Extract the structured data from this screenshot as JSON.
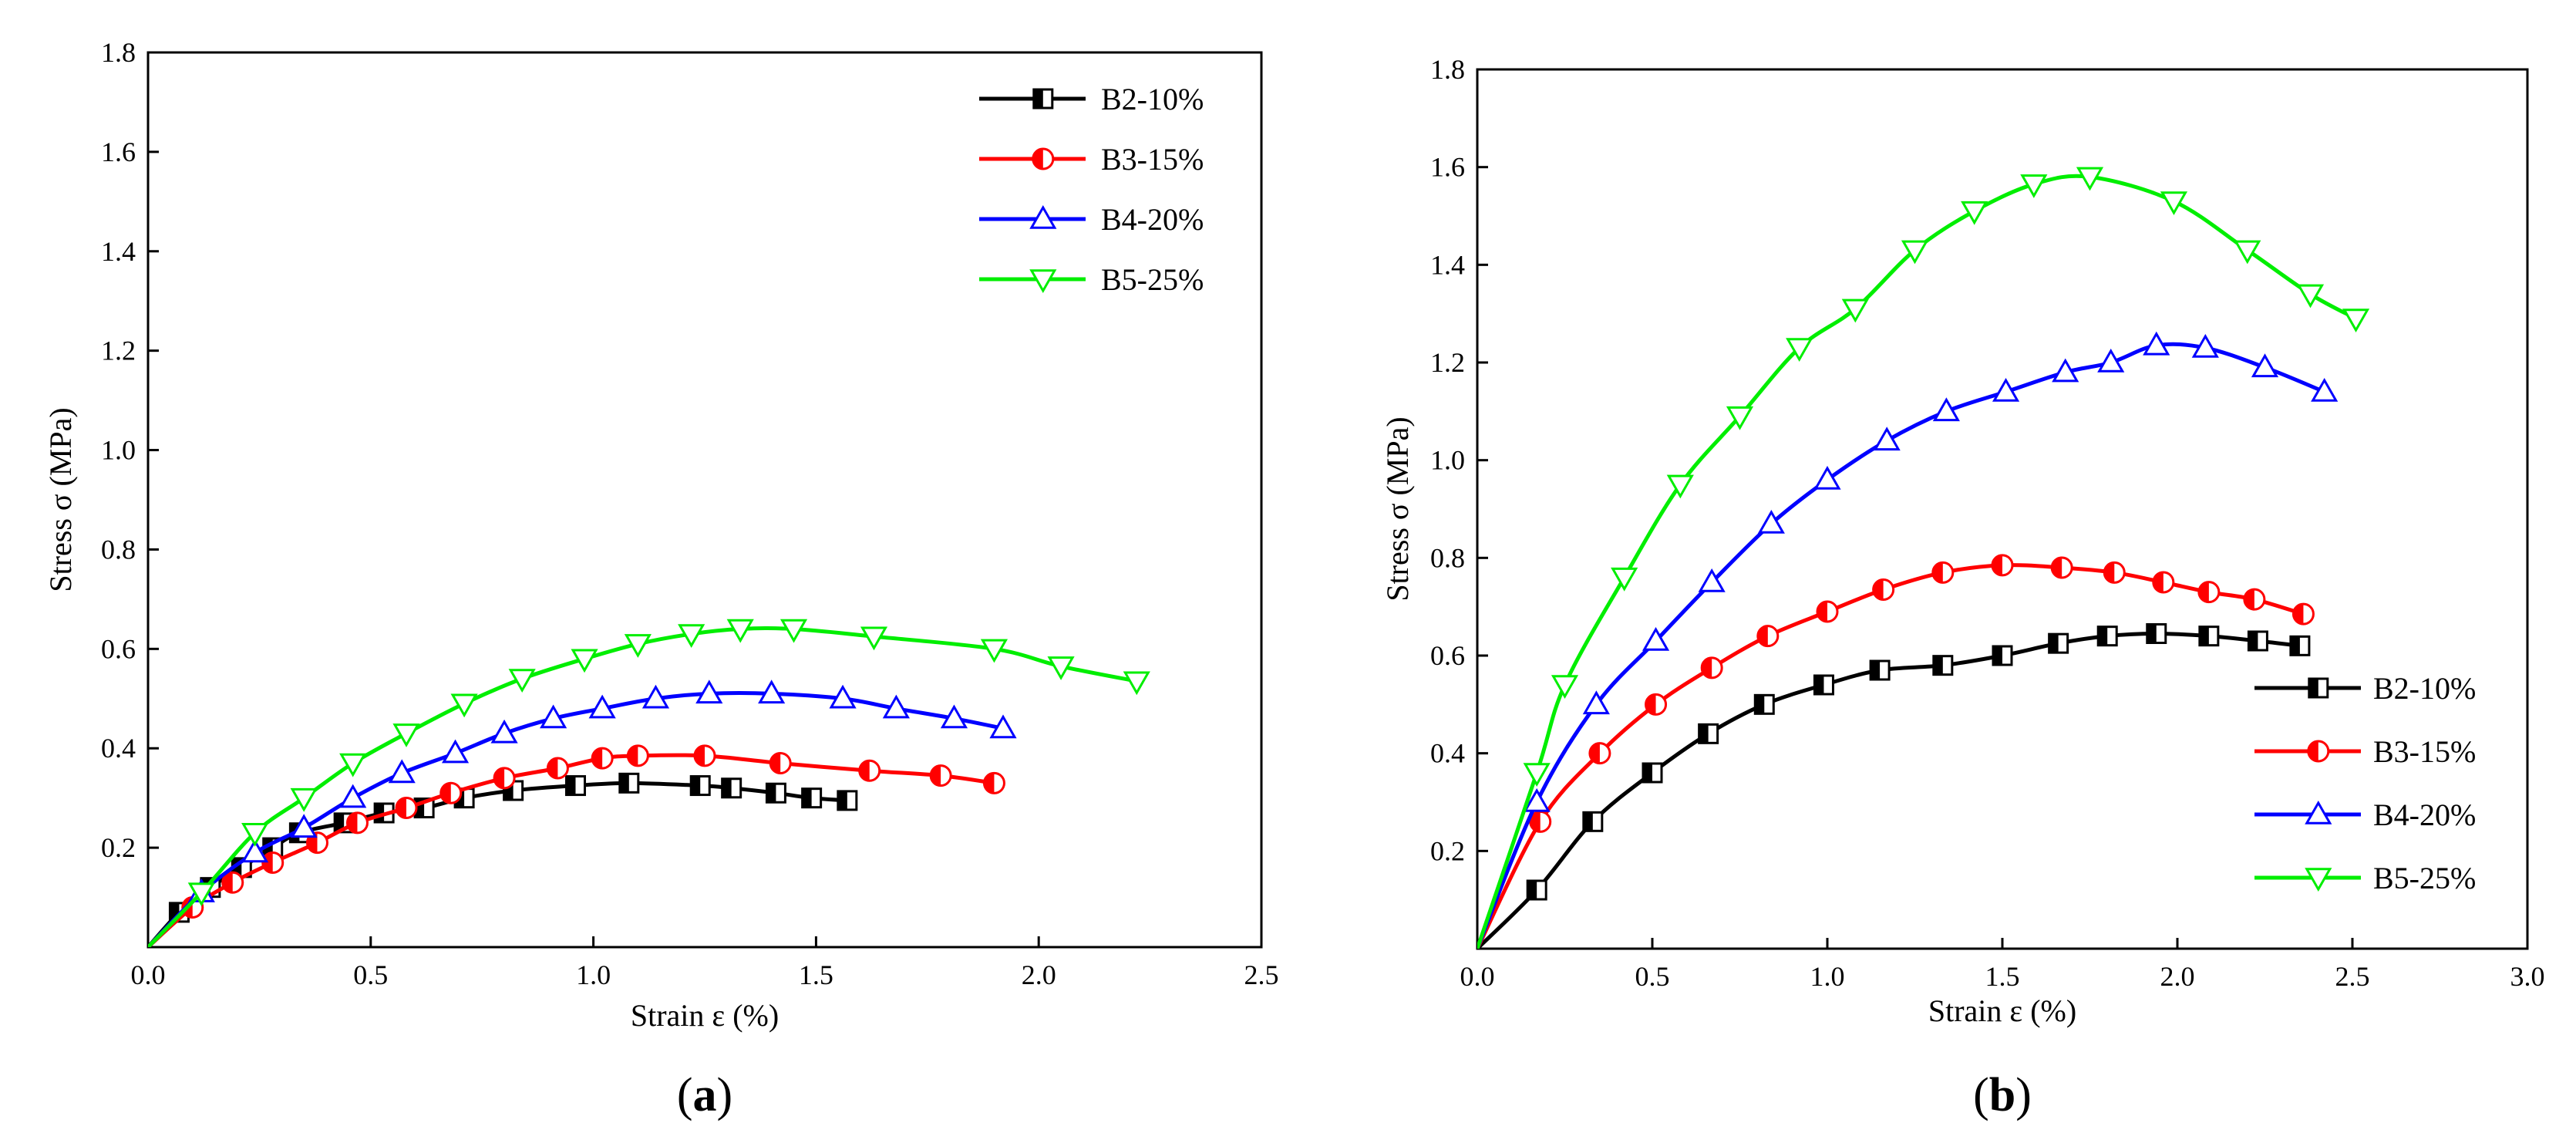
{
  "chart_data": [
    {
      "type": "line",
      "panel_label": "a",
      "title": "",
      "xlabel": "Strain ε (%)",
      "ylabel": "Stress σ (MPa)",
      "xlim": [
        0,
        2.5
      ],
      "ylim": [
        0,
        1.8
      ],
      "xticks": [
        "0.0",
        "0.5",
        "1.0",
        "1.5",
        "2.0",
        "2.5"
      ],
      "yticks": [
        "0.2",
        "0.4",
        "0.6",
        "0.8",
        "1.0",
        "1.2",
        "1.4",
        "1.6",
        "1.8"
      ],
      "legend_position": "top-right",
      "series": [
        {
          "name": "B2-10%",
          "color": "#000000",
          "marker": "half-square",
          "x": [
            0,
            0.07,
            0.14,
            0.21,
            0.28,
            0.34,
            0.44,
            0.53,
            0.62,
            0.71,
            0.82,
            0.96,
            1.08,
            1.24,
            1.31,
            1.41,
            1.49,
            1.57
          ],
          "y": [
            0,
            0.07,
            0.12,
            0.16,
            0.2,
            0.23,
            0.25,
            0.27,
            0.28,
            0.3,
            0.315,
            0.325,
            0.33,
            0.325,
            0.32,
            0.31,
            0.3,
            0.295
          ]
        },
        {
          "name": "B3-15%",
          "color": "#ff0000",
          "marker": "half-circle",
          "x": [
            0,
            0.1,
            0.19,
            0.28,
            0.38,
            0.47,
            0.58,
            0.68,
            0.8,
            0.92,
            1.02,
            1.1,
            1.25,
            1.42,
            1.62,
            1.78,
            1.9
          ],
          "y": [
            0,
            0.08,
            0.13,
            0.17,
            0.21,
            0.25,
            0.28,
            0.31,
            0.34,
            0.36,
            0.38,
            0.385,
            0.385,
            0.37,
            0.355,
            0.345,
            0.33
          ]
        },
        {
          "name": "B4-20%",
          "color": "#0000ff",
          "marker": "triangle-up",
          "x": [
            0,
            0.12,
            0.24,
            0.35,
            0.46,
            0.57,
            0.69,
            0.8,
            0.91,
            1.02,
            1.14,
            1.26,
            1.4,
            1.56,
            1.68,
            1.81,
            1.92
          ],
          "y": [
            0,
            0.11,
            0.19,
            0.24,
            0.3,
            0.35,
            0.39,
            0.43,
            0.46,
            0.48,
            0.5,
            0.51,
            0.51,
            0.5,
            0.48,
            0.46,
            0.44
          ]
        },
        {
          "name": "B5-25%",
          "color": "#00ee00",
          "marker": "triangle-down",
          "x": [
            0,
            0.12,
            0.24,
            0.35,
            0.46,
            0.58,
            0.71,
            0.84,
            0.98,
            1.1,
            1.22,
            1.33,
            1.45,
            1.63,
            1.9,
            2.05,
            2.22
          ],
          "y": [
            0,
            0.11,
            0.23,
            0.3,
            0.37,
            0.43,
            0.49,
            0.54,
            0.58,
            0.61,
            0.63,
            0.64,
            0.64,
            0.625,
            0.6,
            0.565,
            0.535
          ]
        }
      ]
    },
    {
      "type": "line",
      "panel_label": "b",
      "title": "",
      "xlabel": "Strain ε (%)",
      "ylabel": "Stress σ (MPa)",
      "xlim": [
        0,
        3.0
      ],
      "ylim": [
        0,
        1.8
      ],
      "xticks": [
        "0.0",
        "0.5",
        "1.0",
        "1.5",
        "2.0",
        "2.5",
        "3.0"
      ],
      "yticks": [
        "0.2",
        "0.4",
        "0.6",
        "0.8",
        "1.0",
        "1.2",
        "1.4",
        "1.6",
        "1.8"
      ],
      "legend_position": "bottom-right",
      "series": [
        {
          "name": "B2-10%",
          "color": "#000000",
          "marker": "half-square",
          "x": [
            0,
            0.17,
            0.33,
            0.5,
            0.66,
            0.82,
            0.99,
            1.15,
            1.33,
            1.5,
            1.66,
            1.8,
            1.94,
            2.09,
            2.23,
            2.35
          ],
          "y": [
            0,
            0.12,
            0.26,
            0.36,
            0.44,
            0.5,
            0.54,
            0.57,
            0.58,
            0.6,
            0.625,
            0.64,
            0.645,
            0.64,
            0.63,
            0.62
          ]
        },
        {
          "name": "B3-15%",
          "color": "#ff0000",
          "marker": "half-circle",
          "x": [
            0,
            0.18,
            0.35,
            0.51,
            0.67,
            0.83,
            1.0,
            1.16,
            1.33,
            1.5,
            1.67,
            1.82,
            1.96,
            2.09,
            2.22,
            2.36
          ],
          "y": [
            0,
            0.26,
            0.4,
            0.5,
            0.575,
            0.64,
            0.69,
            0.735,
            0.77,
            0.785,
            0.78,
            0.77,
            0.75,
            0.73,
            0.715,
            0.685
          ]
        },
        {
          "name": "B4-20%",
          "color": "#0000ff",
          "marker": "triangle-up",
          "x": [
            0,
            0.17,
            0.34,
            0.51,
            0.67,
            0.84,
            1.0,
            1.17,
            1.34,
            1.51,
            1.68,
            1.81,
            1.94,
            2.08,
            2.25,
            2.42
          ],
          "y": [
            0,
            0.3,
            0.5,
            0.63,
            0.75,
            0.87,
            0.96,
            1.04,
            1.1,
            1.14,
            1.18,
            1.2,
            1.235,
            1.23,
            1.19,
            1.14
          ]
        },
        {
          "name": "B5-25%",
          "color": "#00ee00",
          "marker": "triangle-down",
          "x": [
            0,
            0.17,
            0.25,
            0.42,
            0.58,
            0.75,
            0.92,
            1.08,
            1.25,
            1.42,
            1.59,
            1.75,
            1.99,
            2.2,
            2.38,
            2.51
          ],
          "y": [
            0,
            0.36,
            0.54,
            0.76,
            0.95,
            1.09,
            1.23,
            1.31,
            1.43,
            1.51,
            1.565,
            1.58,
            1.53,
            1.43,
            1.34,
            1.29
          ]
        }
      ]
    }
  ]
}
